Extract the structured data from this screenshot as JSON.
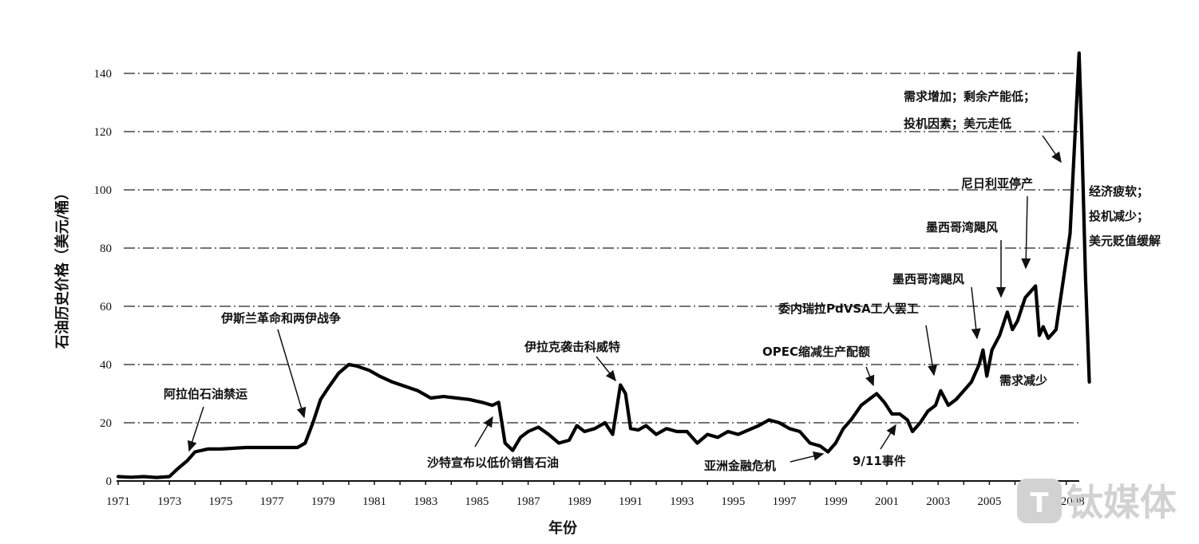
{
  "chart_data": {
    "type": "line",
    "title": "",
    "xlabel": "年份",
    "ylabel": "石油历史价格（美元/桶）",
    "xlim": [
      1971,
      2008.9
    ],
    "ylim": [
      0,
      150
    ],
    "grid": "horizontal dash-dot",
    "yticks": [
      0,
      20,
      40,
      60,
      80,
      100,
      120,
      140
    ],
    "xtick_labels": [
      "1971",
      "1973",
      "1975",
      "1977",
      "1979",
      "1981",
      "1983",
      "1985",
      "1987",
      "1989",
      "1991",
      "1993",
      "1995",
      "1997",
      "1999",
      "2001",
      "2003",
      "2005",
      "2007",
      "2008"
    ],
    "series": [
      {
        "name": "石油历史价格",
        "x": [
          1971.0,
          1971.5,
          1972.0,
          1972.5,
          1973.0,
          1973.3,
          1973.7,
          1974.0,
          1974.5,
          1975.0,
          1976.0,
          1977.0,
          1978.0,
          1978.3,
          1978.6,
          1978.9,
          1979.2,
          1979.6,
          1980.0,
          1980.3,
          1980.8,
          1981.2,
          1981.7,
          1982.2,
          1982.7,
          1983.2,
          1983.7,
          1984.2,
          1984.7,
          1985.2,
          1985.6,
          1985.85,
          1986.1,
          1986.4,
          1986.7,
          1987.0,
          1987.4,
          1987.8,
          1988.2,
          1988.6,
          1988.9,
          1989.2,
          1989.6,
          1990.0,
          1990.3,
          1990.6,
          1990.8,
          1991.0,
          1991.3,
          1991.6,
          1992.0,
          1992.4,
          1992.8,
          1993.2,
          1993.6,
          1994.0,
          1994.4,
          1994.8,
          1995.2,
          1995.6,
          1996.0,
          1996.4,
          1996.8,
          1997.2,
          1997.6,
          1998.0,
          1998.4,
          1998.7,
          1999.0,
          1999.3,
          1999.6,
          2000.0,
          2000.3,
          2000.6,
          2000.9,
          2001.2,
          2001.5,
          2001.8,
          2002.0,
          2002.3,
          2002.6,
          2002.9,
          2003.1,
          2003.4,
          2003.7,
          2004.0,
          2004.3,
          2004.6,
          2004.75,
          2004.9,
          2005.1,
          2005.4,
          2005.7,
          2005.9,
          2006.1,
          2006.4,
          2006.6,
          2006.8,
          2006.95,
          2007.1,
          2007.3,
          2007.6,
          2007.9,
          2008.15,
          2008.35,
          2008.5,
          2008.6,
          2008.75,
          2008.9
        ],
        "values": [
          1.5,
          1.3,
          1.5,
          1.2,
          1.5,
          4,
          7,
          10,
          11,
          11,
          11.5,
          11.5,
          11.5,
          13,
          20,
          28,
          32,
          37,
          40,
          39.5,
          38,
          36,
          34,
          32.5,
          31,
          28.5,
          29,
          28.5,
          28,
          27,
          26,
          27,
          13,
          10.5,
          15,
          17,
          18.5,
          16,
          13,
          14,
          19,
          17,
          18,
          20,
          16,
          33,
          30,
          18,
          17.5,
          19,
          16,
          18,
          17,
          17,
          13,
          16,
          15,
          17,
          16,
          17.5,
          19,
          21,
          20,
          18,
          17,
          13,
          12,
          10,
          13,
          18,
          21,
          26,
          28,
          30,
          27,
          23,
          23,
          21,
          17,
          20,
          24,
          26,
          31,
          26,
          28,
          31,
          34,
          40,
          45,
          36,
          45,
          50,
          58,
          52,
          55,
          63,
          65,
          67,
          50,
          53,
          49,
          52,
          70,
          85,
          120,
          147,
          120,
          70,
          34
        ]
      }
    ],
    "annotations": [
      {
        "text": "阿拉伯石油禁运",
        "arrow_to_year": 1973.8,
        "arrow_to_value": 10
      },
      {
        "text": "伊斯兰革命和两伊战争",
        "arrow_to_year": 1978.3,
        "arrow_to_value": 21
      },
      {
        "text": "沙特宣布以低价销售石油",
        "arrow_to_year": 1985.6,
        "arrow_to_value": 19
      },
      {
        "text": "伊拉克袭击科威特",
        "arrow_to_year": 1990.55,
        "arrow_to_value": 33
      },
      {
        "text": "亚洲金融危机",
        "arrow_to_year": 1998.6,
        "arrow_to_value": 9
      },
      {
        "text": "OPEC缩减生产配额",
        "arrow_to_year": 2000.4,
        "arrow_to_value": 31
      },
      {
        "text": "9/11事件",
        "arrow_to_year": 2001.6,
        "arrow_to_value": 21
      },
      {
        "text": "委内瑞拉PdVSA工人罢工",
        "arrow_to_year": 2003.0,
        "arrow_to_value": 35
      },
      {
        "text": "墨西哥湾飓风",
        "arrow_to_year": 2004.75,
        "arrow_to_value": 47
      },
      {
        "text": "需求减少",
        "arrow_to_year": null,
        "arrow_to_value": null
      },
      {
        "text": "墨西哥湾飓风",
        "arrow_to_year": 2005.75,
        "arrow_to_value": 60
      },
      {
        "text": "尼日利亚停产",
        "arrow_to_year": 2007.0,
        "arrow_to_value": 72
      },
      {
        "text": "需求增加；剩余产能低；",
        "arrow_to_year": null,
        "arrow_to_value": null
      },
      {
        "text": "投机因素；美元走低",
        "arrow_to_year": 2008.15,
        "arrow_to_value": 107
      },
      {
        "text": "经济疲软；",
        "arrow_to_year": null,
        "arrow_to_value": null
      },
      {
        "text": "投机减少；",
        "arrow_to_year": null,
        "arrow_to_value": null
      },
      {
        "text": "美元贬值缓解",
        "arrow_to_year": null,
        "arrow_to_value": null
      }
    ]
  },
  "labels": {
    "y_title": "石油历史价格（美元/桶）",
    "x_title": "年份",
    "a_embargo": "阿拉伯石油禁运",
    "a_iran": "伊斯兰革命和两伊战争",
    "a_saudi": "沙特宣布以低价销售石油",
    "a_kuwait": "伊拉克袭击科威特",
    "a_asia": "亚洲金融危机",
    "a_opec": "OPEC缩减生产配额",
    "a_911": "9/11事件",
    "a_venezuela": "委内瑞拉PdVSA工人罢工",
    "a_gulf1": "墨西哥湾飓风",
    "a_demand_down": "需求减少",
    "a_gulf2": "墨西哥湾飓风",
    "a_nigeria": "尼日利亚停产",
    "a_peak1": "需求增加；剩余产能低；",
    "a_peak2": "投机因素；美元走低",
    "a_fall1": "经济疲软；",
    "a_fall2": "投机减少；",
    "a_fall3": "美元贬值缓解"
  },
  "watermark": {
    "text": "钛媒体",
    "color": "#cfcfcf"
  },
  "colors": {
    "line": "#000000",
    "grid": "#222222",
    "background": "#ffffff"
  }
}
